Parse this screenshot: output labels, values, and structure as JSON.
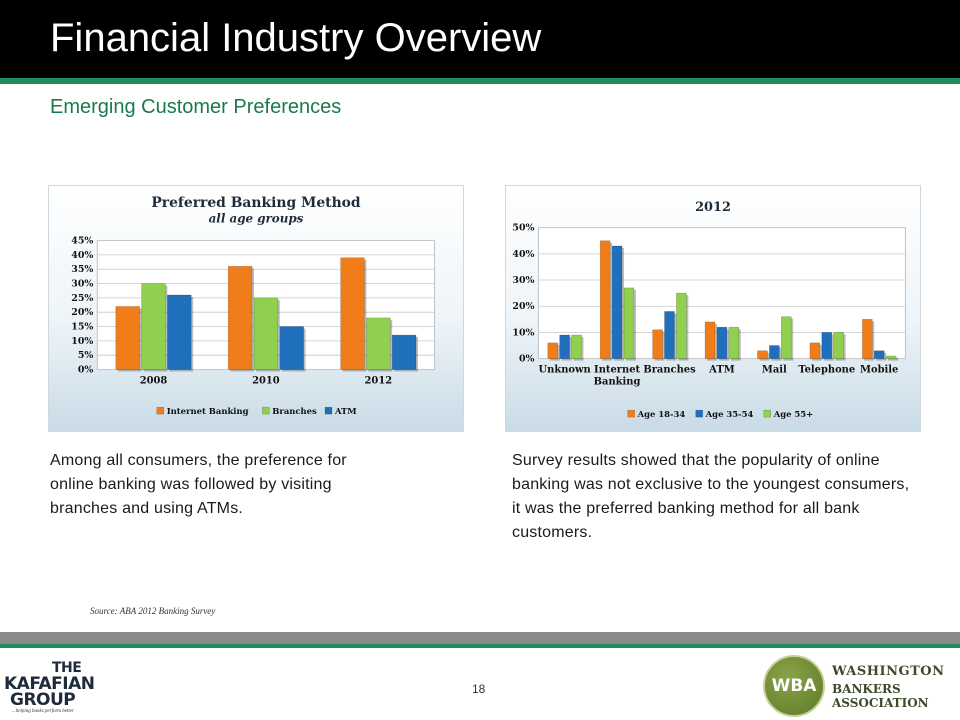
{
  "slide": {
    "title": "Financial Industry Overview",
    "subtitle": "Emerging Customer Preferences",
    "text_left": "Among all consumers, the preference for online banking was followed by visiting branches and using ATMs.",
    "text_right": "Survey results showed that the popularity of online banking was not exclusive to the youngest consumers, it was the preferred banking method for all bank customers.",
    "source": "Source: ABA 2012 Banking Survey",
    "page_number": "18"
  },
  "footer": {
    "left_logo": {
      "line1": "THE",
      "line2": "KAFAFIAN",
      "line3": "GROUP",
      "tagline": "...helping banks perform better"
    },
    "right_logo": {
      "mark": "WBA",
      "line1": "WASHINGTON",
      "line2": "BANKERS ASSOCIATION"
    }
  },
  "colors": {
    "orange": "#f07d1a",
    "green": "#8fd14f",
    "blue": "#1f6fbd",
    "accent_green": "#1f8a5a"
  },
  "chart_data": [
    {
      "type": "bar",
      "title": "Preferred Banking Method",
      "subtitle": "all age groups",
      "categories": [
        "2008",
        "2010",
        "2012"
      ],
      "series": [
        {
          "name": "Internet Banking",
          "color": "#f07d1a",
          "values": [
            22,
            36,
            39
          ]
        },
        {
          "name": "Branches",
          "color": "#8fd14f",
          "values": [
            30,
            25,
            18
          ]
        },
        {
          "name": "ATM",
          "color": "#1f6fbd",
          "values": [
            26,
            15,
            12
          ]
        }
      ],
      "ylim": [
        0,
        45
      ],
      "yticks": [
        "0%",
        "5%",
        "10%",
        "15%",
        "20%",
        "25%",
        "30%",
        "35%",
        "40%",
        "45%"
      ],
      "legend": "bottom",
      "grid": true
    },
    {
      "type": "bar",
      "title": "2012",
      "categories": [
        "Unknown",
        "Internet Banking",
        "Branches",
        "ATM",
        "Mail",
        "Telephone",
        "Mobile"
      ],
      "series": [
        {
          "name": "Age 18-34",
          "color": "#f07d1a",
          "values": [
            6,
            45,
            11,
            14,
            3,
            6,
            15
          ]
        },
        {
          "name": "Age 35-54",
          "color": "#1f6fbd",
          "values": [
            9,
            43,
            18,
            12,
            5,
            10,
            3
          ]
        },
        {
          "name": "Age 55+",
          "color": "#8fd14f",
          "values": [
            9,
            27,
            25,
            12,
            16,
            10,
            1
          ]
        }
      ],
      "ylim": [
        0,
        50
      ],
      "yticks": [
        "0%",
        "10%",
        "20%",
        "30%",
        "40%",
        "50%"
      ],
      "legend": "bottom",
      "grid": true
    }
  ]
}
